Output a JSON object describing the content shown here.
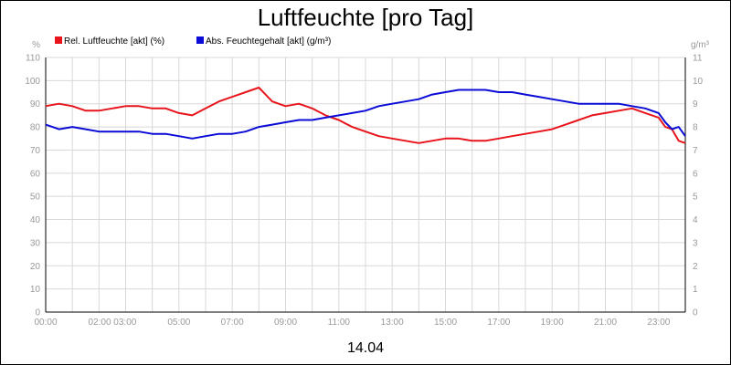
{
  "colors": {
    "relative_humidity": "#e8141c",
    "absolute_humidity": "#0b0bd6",
    "grid": "#d8d8d8",
    "axis": "#000000",
    "tick_text": "#999999"
  },
  "chart_data": {
    "type": "line",
    "title": "Luftfeuchte [pro Tag]",
    "xlabel": "14.04",
    "legend_placement": "top-left",
    "grid": true,
    "x_range": [
      "00:00",
      "24:00"
    ],
    "x_ticks": [
      "00:00",
      "02:00 03:00",
      "05:00",
      "07:00",
      "09:00",
      "11:00",
      "13:00",
      "15:00",
      "17:00",
      "19:00",
      "21:00",
      "23:00"
    ],
    "x_tick_hours": [
      0,
      2.5,
      5,
      7,
      9,
      11,
      13,
      15,
      17,
      19,
      21,
      23
    ],
    "y_left": {
      "unit": "%",
      "ticks": [
        0,
        10,
        20,
        30,
        40,
        50,
        60,
        70,
        80,
        90,
        100,
        110
      ],
      "range": [
        0,
        110
      ]
    },
    "y_right": {
      "unit": "g/m³",
      "ticks": [
        0,
        1,
        2,
        3,
        4,
        5,
        6,
        7,
        8,
        9,
        10,
        11
      ],
      "range": [
        0,
        11
      ]
    },
    "series": [
      {
        "name": "Rel. Luftfeuchte [akt] (%)",
        "axis": "left",
        "x_hours": [
          0,
          0.5,
          1,
          1.5,
          2,
          2.5,
          3,
          3.5,
          4,
          4.5,
          5,
          5.5,
          6,
          6.5,
          7,
          7.25,
          7.5,
          7.75,
          8,
          8.25,
          8.5,
          9,
          9.5,
          10,
          10.5,
          11,
          11.5,
          12,
          12.5,
          13,
          13.5,
          14,
          14.5,
          15,
          15.5,
          16,
          16.5,
          17,
          17.5,
          18,
          18.5,
          19,
          19.5,
          20,
          20.5,
          21,
          21.5,
          22,
          22.5,
          23,
          23.25,
          23.5,
          23.75,
          24
        ],
        "values": [
          89,
          90,
          89,
          87,
          87,
          88,
          89,
          89,
          88,
          88,
          86,
          85,
          88,
          91,
          93,
          94,
          95,
          96,
          97,
          94,
          91,
          89,
          90,
          88,
          85,
          83,
          80,
          78,
          76,
          75,
          74,
          73,
          74,
          75,
          75,
          74,
          74,
          75,
          76,
          77,
          78,
          79,
          81,
          83,
          85,
          86,
          87,
          88,
          86,
          84,
          80,
          79,
          74,
          73
        ]
      },
      {
        "name": "Abs. Feuchtegehalt [akt] (g/m³)",
        "axis": "right",
        "x_hours": [
          0,
          0.5,
          1,
          1.5,
          2,
          2.5,
          3,
          3.5,
          4,
          4.5,
          5,
          5.5,
          6,
          6.5,
          7,
          7.5,
          8,
          8.5,
          9,
          9.5,
          10,
          10.5,
          11,
          11.5,
          12,
          12.5,
          13,
          13.5,
          14,
          14.5,
          15,
          15.5,
          16,
          16.5,
          17,
          17.5,
          18,
          18.5,
          19,
          19.5,
          20,
          20.5,
          21,
          21.5,
          22,
          22.5,
          23,
          23.25,
          23.5,
          23.75,
          24
        ],
        "values": [
          8.1,
          7.9,
          8.0,
          7.9,
          7.8,
          7.8,
          7.8,
          7.8,
          7.7,
          7.7,
          7.6,
          7.5,
          7.6,
          7.7,
          7.7,
          7.8,
          8.0,
          8.1,
          8.2,
          8.3,
          8.3,
          8.4,
          8.5,
          8.6,
          8.7,
          8.9,
          9.0,
          9.1,
          9.2,
          9.4,
          9.5,
          9.6,
          9.6,
          9.6,
          9.5,
          9.5,
          9.4,
          9.3,
          9.2,
          9.1,
          9.0,
          9.0,
          9.0,
          9.0,
          8.9,
          8.8,
          8.6,
          8.2,
          7.9,
          8.0,
          7.6
        ]
      }
    ]
  }
}
